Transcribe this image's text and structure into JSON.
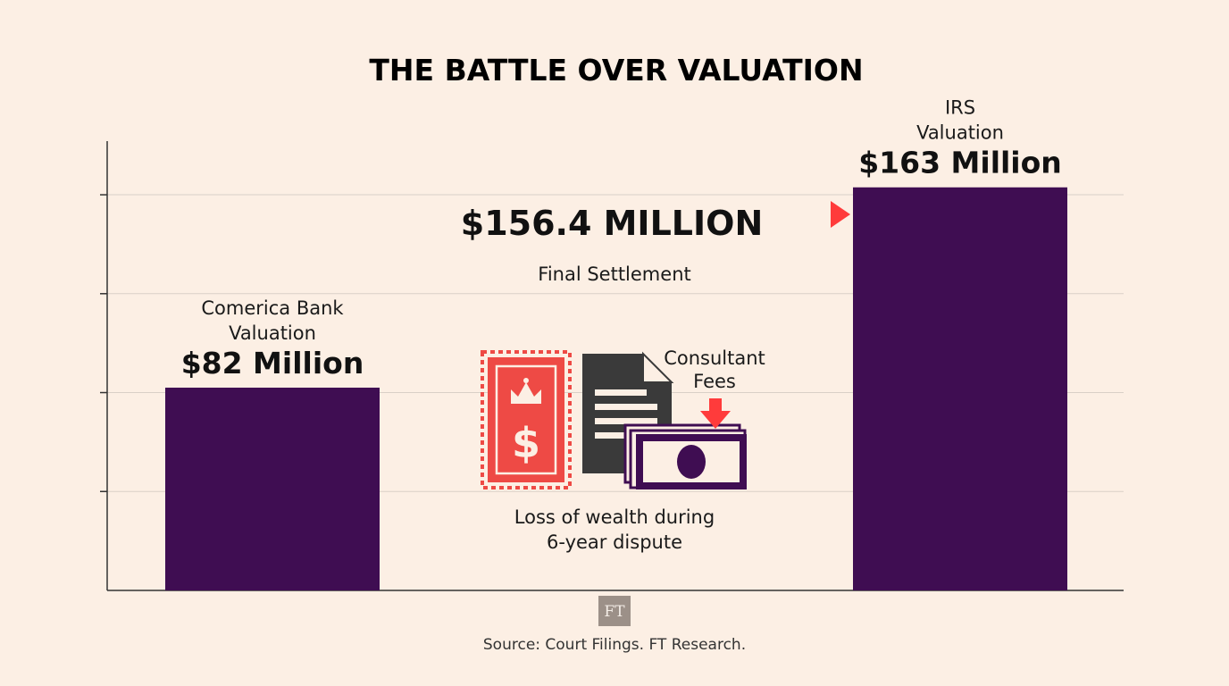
{
  "chart_data": {
    "type": "bar",
    "title": "THE BATTLE OVER VALUATION",
    "categories": [
      "Comerica Bank Valuation",
      "IRS Valuation"
    ],
    "series": [
      {
        "values": [
          82,
          163
        ],
        "caption_lines": [
          [
            "Comerica Bank",
            "Valuation"
          ],
          [
            "IRS",
            "Valuation"
          ]
        ],
        "value_labels": [
          "$82 Million",
          "$163 Million"
        ]
      }
    ],
    "unit": "$ Million",
    "ylim": [
      0,
      190
    ],
    "grid": true,
    "reference_line": {
      "value": 156.4,
      "value_label": "$156.4 MILLION",
      "label": "Final Settlement"
    },
    "annotation": {
      "label_lines": [
        "Loss of wealth during",
        "6-year dispute"
      ],
      "fees_label_lines": [
        "Consultant",
        "Fees"
      ]
    },
    "source": "Source: Court Filings. FT Research.",
    "logo": "FT"
  },
  "colors": {
    "background": "#fcefe4",
    "bar": "#3f0d52",
    "reference_line": "#ff3b3b",
    "stamp": "#ee4a45",
    "document": "#3a3a3a",
    "gridline": "#d9cfc7",
    "axis": "#333333",
    "logo_bg": "#9c9088"
  },
  "icons": [
    "tax-stamp-icon",
    "document-icon",
    "banknote-icon",
    "down-arrow-icon"
  ]
}
